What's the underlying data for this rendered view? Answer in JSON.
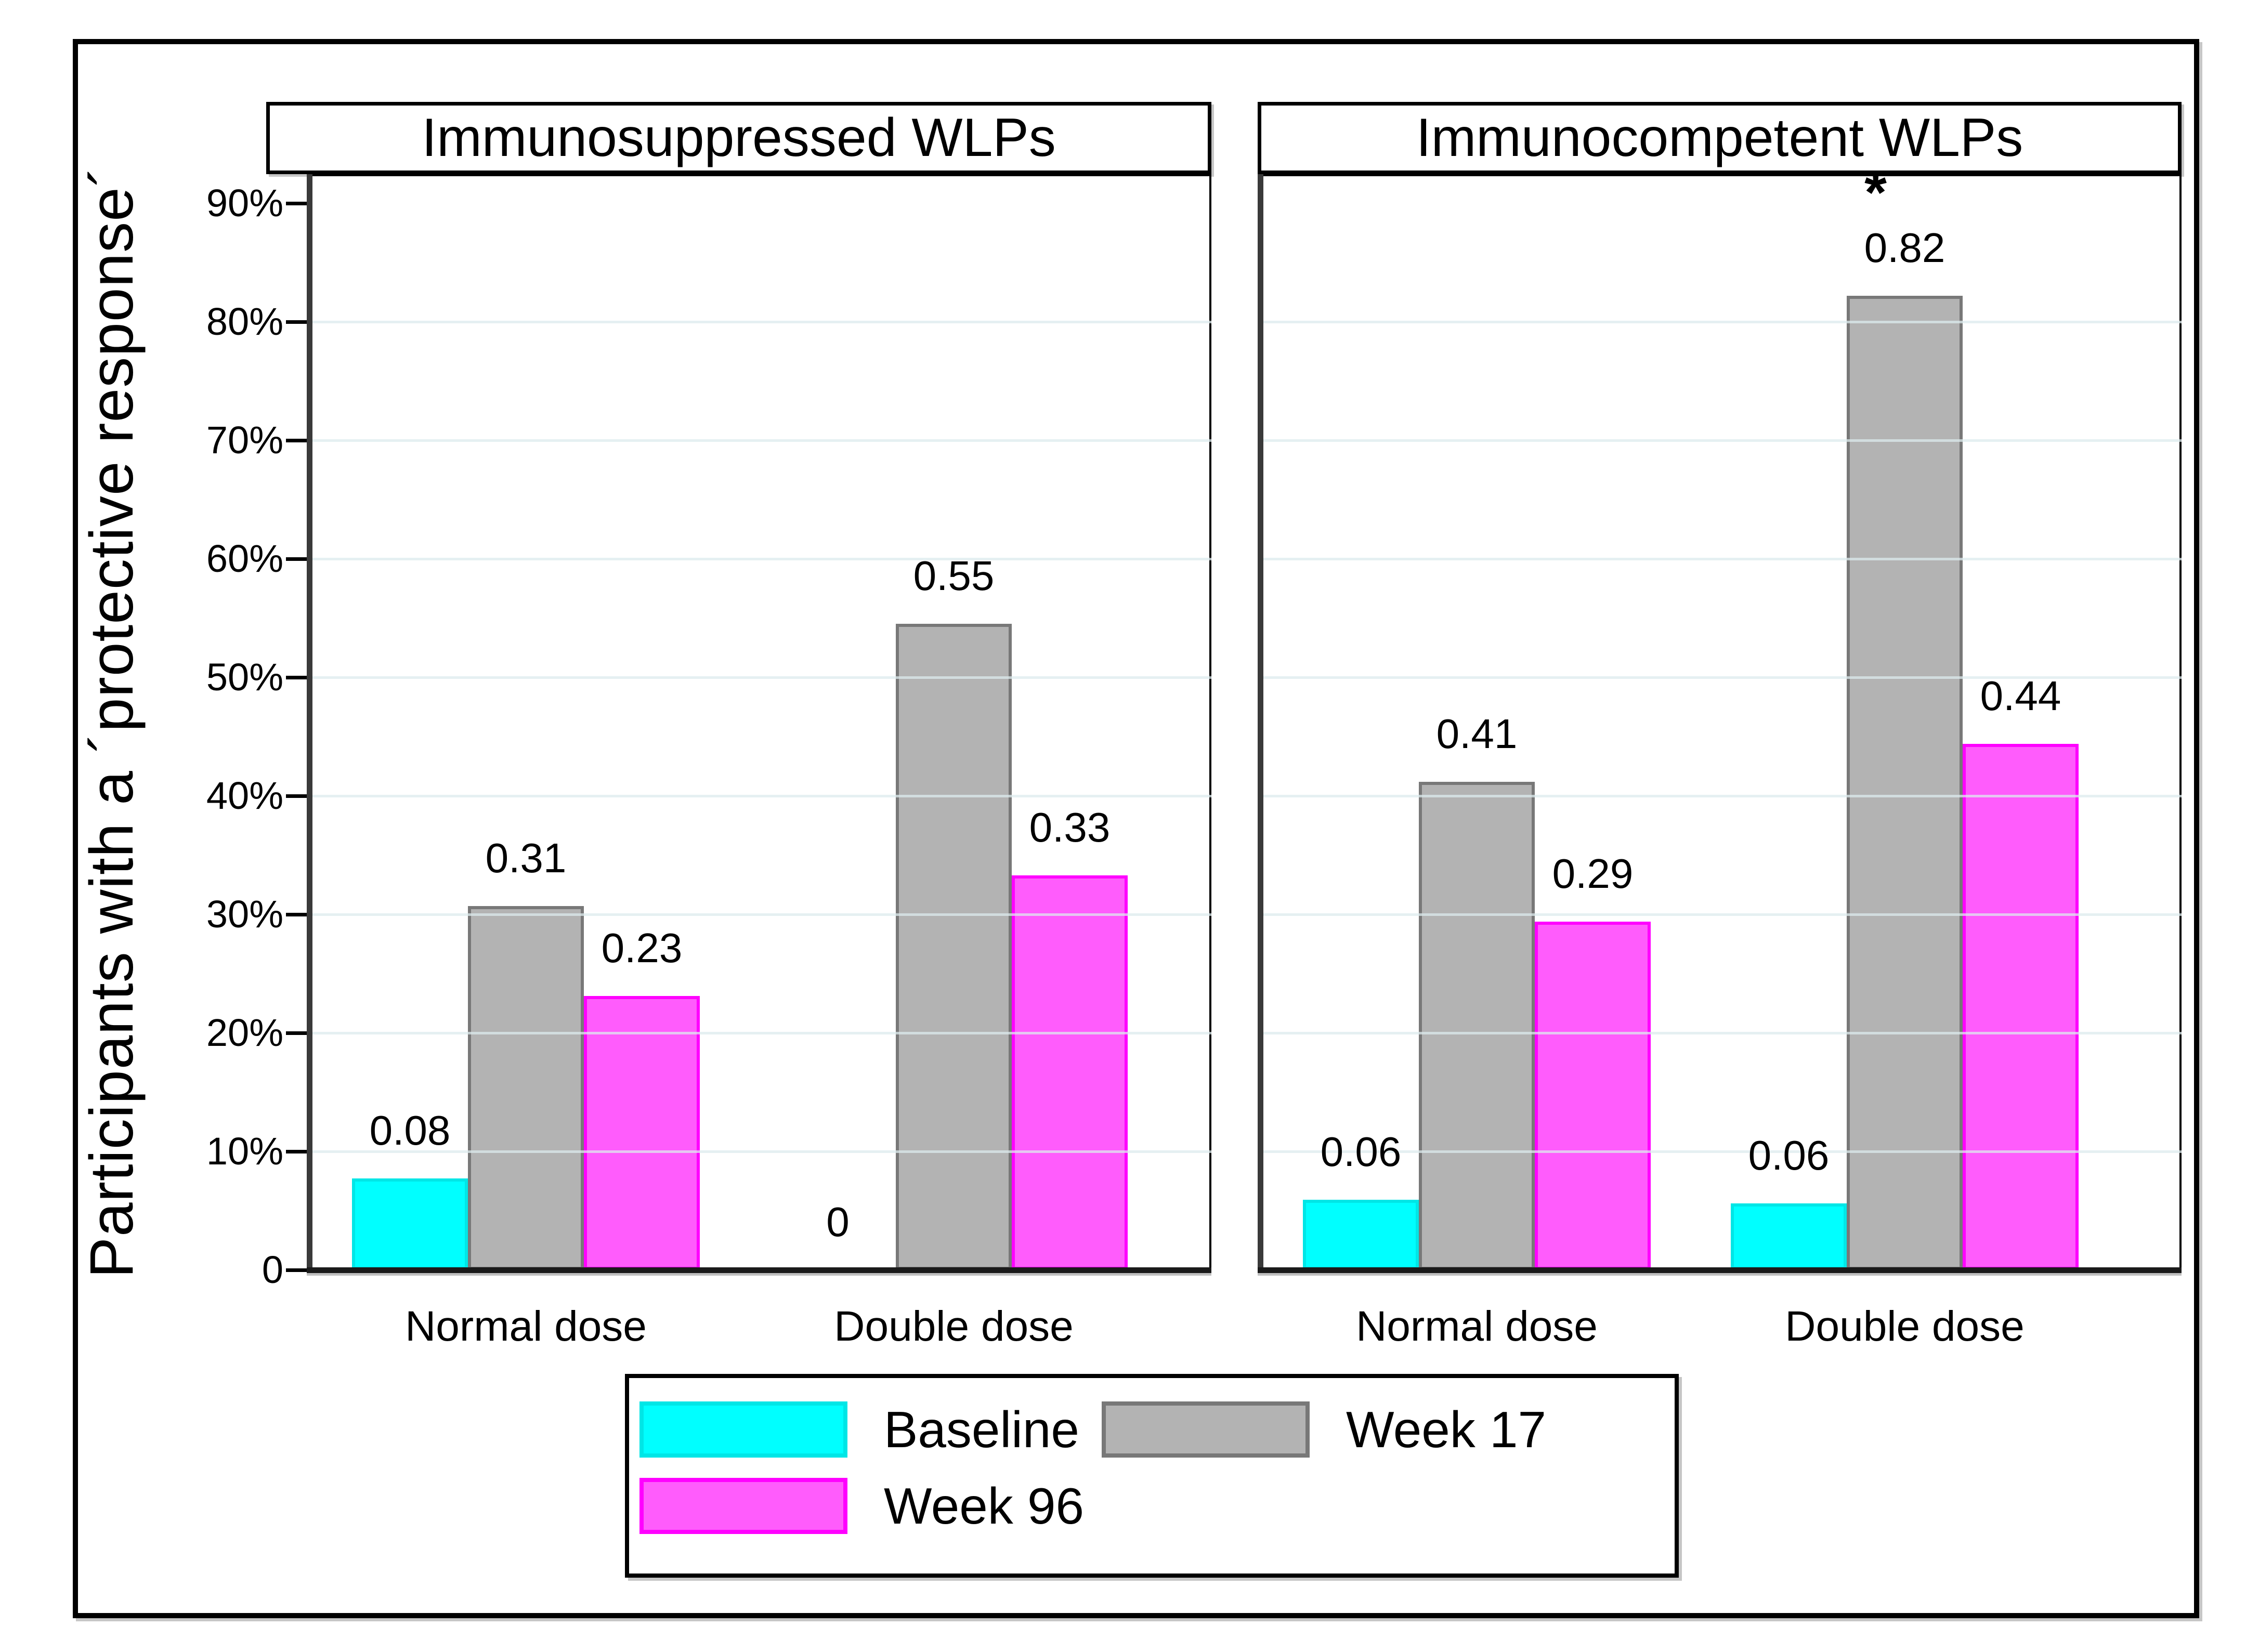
{
  "y_axis": {
    "title": "Participants with a ´protective response´",
    "ticks": [
      {
        "label": "0",
        "pct": 0
      },
      {
        "label": "10%",
        "pct": 10
      },
      {
        "label": "20%",
        "pct": 20
      },
      {
        "label": "30%",
        "pct": 30
      },
      {
        "label": "40%",
        "pct": 40
      },
      {
        "label": "50%",
        "pct": 50
      },
      {
        "label": "60%",
        "pct": 60
      },
      {
        "label": "70%",
        "pct": 70
      },
      {
        "label": "80%",
        "pct": 80
      },
      {
        "label": "90%",
        "pct": 90
      }
    ]
  },
  "colors": {
    "baseline_fill": "#00ffff",
    "baseline_border": "#00e6e6",
    "week17_fill": "#b3b3b3",
    "week17_border": "#787878",
    "week96_fill": "#ff5cfc",
    "week96_border": "#ff00ff",
    "gridline": "#dcebed",
    "axis": "#1a1a1a"
  },
  "legend": {
    "items": [
      {
        "label": "Baseline",
        "series": "baseline",
        "row": 0,
        "col": 0
      },
      {
        "label": "Week 17",
        "series": "week17",
        "row": 0,
        "col": 1
      },
      {
        "label": "Week 96",
        "series": "week96",
        "row": 1,
        "col": 0
      }
    ]
  },
  "chart_data": {
    "type": "bar",
    "title": "",
    "ylabel": "Participants with a ´protective response´",
    "ylim": [
      0,
      92.5
    ],
    "grid": true,
    "gridline_pcts": [
      10,
      20,
      30,
      40,
      50,
      60,
      70,
      80
    ],
    "legend_position": "bottom-center",
    "series_order": [
      "baseline",
      "week17",
      "week96"
    ],
    "series_names": {
      "baseline": "Baseline",
      "week17": "Week 17",
      "week96": "Week 96"
    },
    "panels": [
      {
        "title": "Immunosuppressed WLPs",
        "categories": [
          "Normal dose",
          "Double dose"
        ],
        "groups": [
          {
            "category": "Normal dose",
            "bars": [
              {
                "series": "baseline",
                "label": "0.08",
                "height_pct": 7.7,
                "annotation": ""
              },
              {
                "series": "week17",
                "label": "0.31",
                "height_pct": 30.7,
                "annotation": ""
              },
              {
                "series": "week96",
                "label": "0.23",
                "height_pct": 23.1,
                "annotation": ""
              }
            ]
          },
          {
            "category": "Double dose",
            "bars": [
              {
                "series": "baseline",
                "label": "0",
                "height_pct": 0,
                "annotation": ""
              },
              {
                "series": "week17",
                "label": "0.55",
                "height_pct": 54.5,
                "annotation": ""
              },
              {
                "series": "week96",
                "label": "0.33",
                "height_pct": 33.3,
                "annotation": ""
              }
            ]
          }
        ]
      },
      {
        "title": "Immunocompetent WLPs",
        "categories": [
          "Normal dose",
          "Double dose"
        ],
        "groups": [
          {
            "category": "Normal dose",
            "bars": [
              {
                "series": "baseline",
                "label": "0.06",
                "height_pct": 5.9,
                "annotation": ""
              },
              {
                "series": "week17",
                "label": "0.41",
                "height_pct": 41.2,
                "annotation": ""
              },
              {
                "series": "week96",
                "label": "0.29",
                "height_pct": 29.4,
                "annotation": ""
              }
            ]
          },
          {
            "category": "Double dose",
            "bars": [
              {
                "series": "baseline",
                "label": "0.06",
                "height_pct": 5.6,
                "annotation": ""
              },
              {
                "series": "week17",
                "label": "0.82",
                "height_pct": 82.2,
                "annotation": "*"
              },
              {
                "series": "week96",
                "label": "0.44",
                "height_pct": 44.4,
                "annotation": ""
              }
            ]
          }
        ]
      }
    ]
  }
}
